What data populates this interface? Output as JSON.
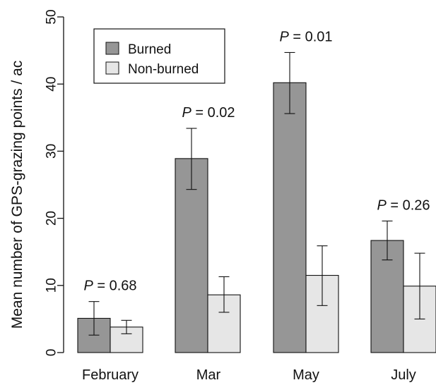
{
  "chart_data": {
    "type": "bar",
    "title": "",
    "xlabel": "",
    "ylabel": "Mean number of GPS-grazing points / ac",
    "ylim": [
      0,
      50
    ],
    "yticks": [
      0,
      10,
      20,
      30,
      40,
      50
    ],
    "grid": false,
    "categories": [
      "February",
      "Mar",
      "May",
      "July"
    ],
    "series": [
      {
        "name": "Burned",
        "color": "#969696",
        "values": [
          5.1,
          28.9,
          40.2,
          16.7
        ],
        "err_low": [
          2.6,
          24.3,
          35.6,
          13.8
        ],
        "err_high": [
          7.6,
          33.4,
          44.7,
          19.6
        ]
      },
      {
        "name": "Non-burned",
        "color": "#e6e6e6",
        "values": [
          3.8,
          8.6,
          11.5,
          9.9
        ],
        "err_low": [
          2.8,
          6.0,
          7.0,
          5.0
        ],
        "err_high": [
          4.8,
          11.3,
          15.9,
          14.8
        ]
      }
    ],
    "annotations": [
      {
        "italic": "P",
        "text": " = 0.68"
      },
      {
        "italic": "P",
        "text": " = 0.02"
      },
      {
        "italic": "P",
        "text": " = 0.01"
      },
      {
        "italic": "P",
        "text": " = 0.26"
      }
    ],
    "legend": {
      "position": "top-left",
      "items": [
        "Burned",
        "Non-burned"
      ]
    }
  }
}
